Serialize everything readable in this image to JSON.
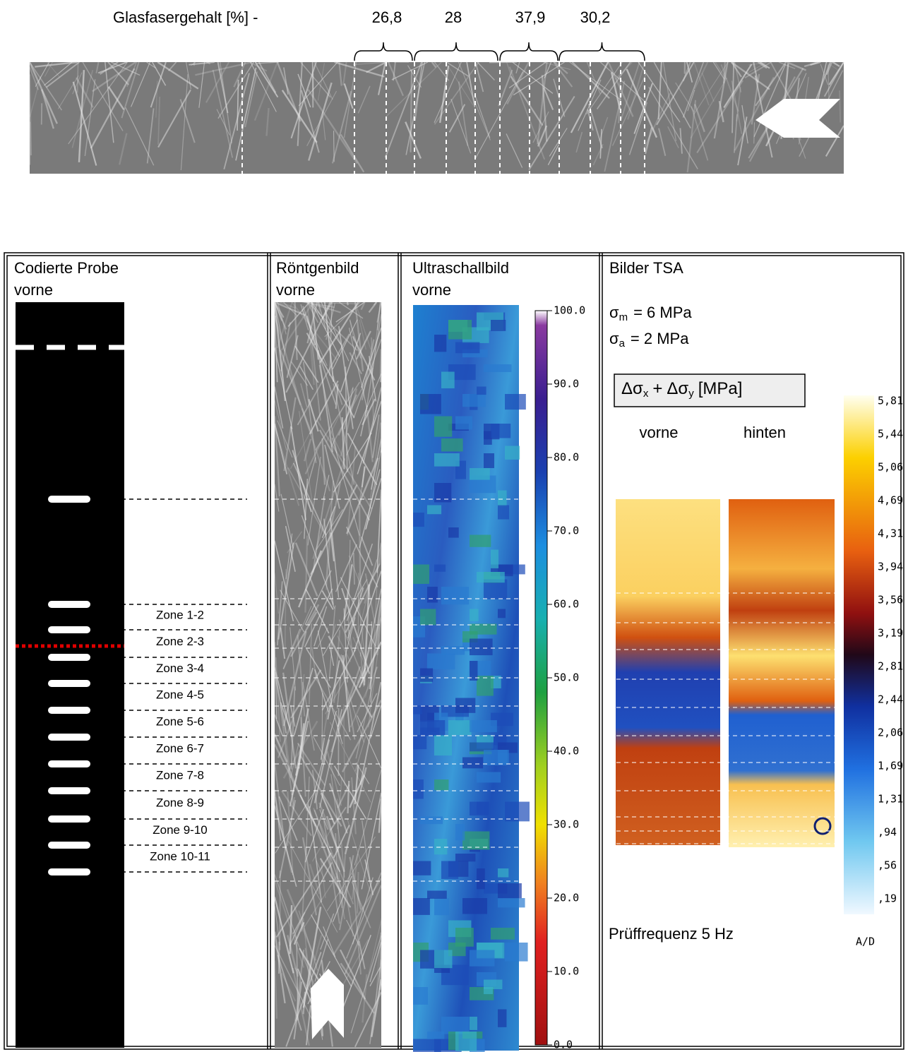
{
  "header": {
    "label": "Glasfasergehalt [%] -",
    "values": [
      "26,8",
      "28",
      "37,9",
      "30,2"
    ]
  },
  "columns": [
    {
      "title": "Codierte Probe",
      "subtitle": "vorne",
      "zones": [
        {
          "label": "Zone 1-2",
          "color": "#000000"
        },
        {
          "label": "Zone 2-3",
          "color": "#ff00ff"
        },
        {
          "label": "Zone 3-4",
          "color": "#008000"
        },
        {
          "label": "Zone 4-5",
          "color": "#f0b400"
        },
        {
          "label": "Zone 5-6",
          "color": "#20c0e0"
        },
        {
          "label": "Zone 6-7",
          "color": "#20e020"
        },
        {
          "label": "Zone 7-8",
          "color": "#f07000"
        },
        {
          "label": "Zone 8-9",
          "color": "#c8a0f0"
        },
        {
          "label": "Zone 9-10",
          "color": "#f0f000"
        },
        {
          "label": "Zone 10-11",
          "color": "#a03060"
        }
      ]
    },
    {
      "title": "Röntgenbild",
      "subtitle": "vorne"
    },
    {
      "title": "Ultraschallbild",
      "subtitle": "vorne",
      "scale": [
        "100.0",
        "90.0",
        "80.0",
        "70.0",
        "60.0",
        "50.0",
        "40.0",
        "30.0",
        "20.0",
        "10.0",
        "0.0"
      ]
    },
    {
      "title": "Bilder TSA",
      "stress": [
        {
          "symbol": "σ",
          "sub": "m",
          "text": "= 6 MPa"
        },
        {
          "symbol": "σ",
          "sub": "a",
          "text": "= 2 MPa"
        }
      ],
      "quantity": [
        {
          "symbol": "Δσ",
          "sub": "x",
          "text": "+"
        },
        {
          "symbol": "Δσ",
          "sub": "y",
          "text": "[MPa]"
        }
      ],
      "views": [
        "vorne",
        "hinten"
      ],
      "scale": [
        "5,81",
        "5,44",
        "5,06",
        "4,69",
        "4,31",
        "3,94",
        "3,56",
        "3,19",
        "2,81",
        "2,44",
        "2,06",
        "1,69",
        "1,31",
        ",94",
        ",56",
        ",19"
      ],
      "scale_unit": "A/D",
      "frequency": "Prüffrequenz 5 Hz"
    }
  ]
}
